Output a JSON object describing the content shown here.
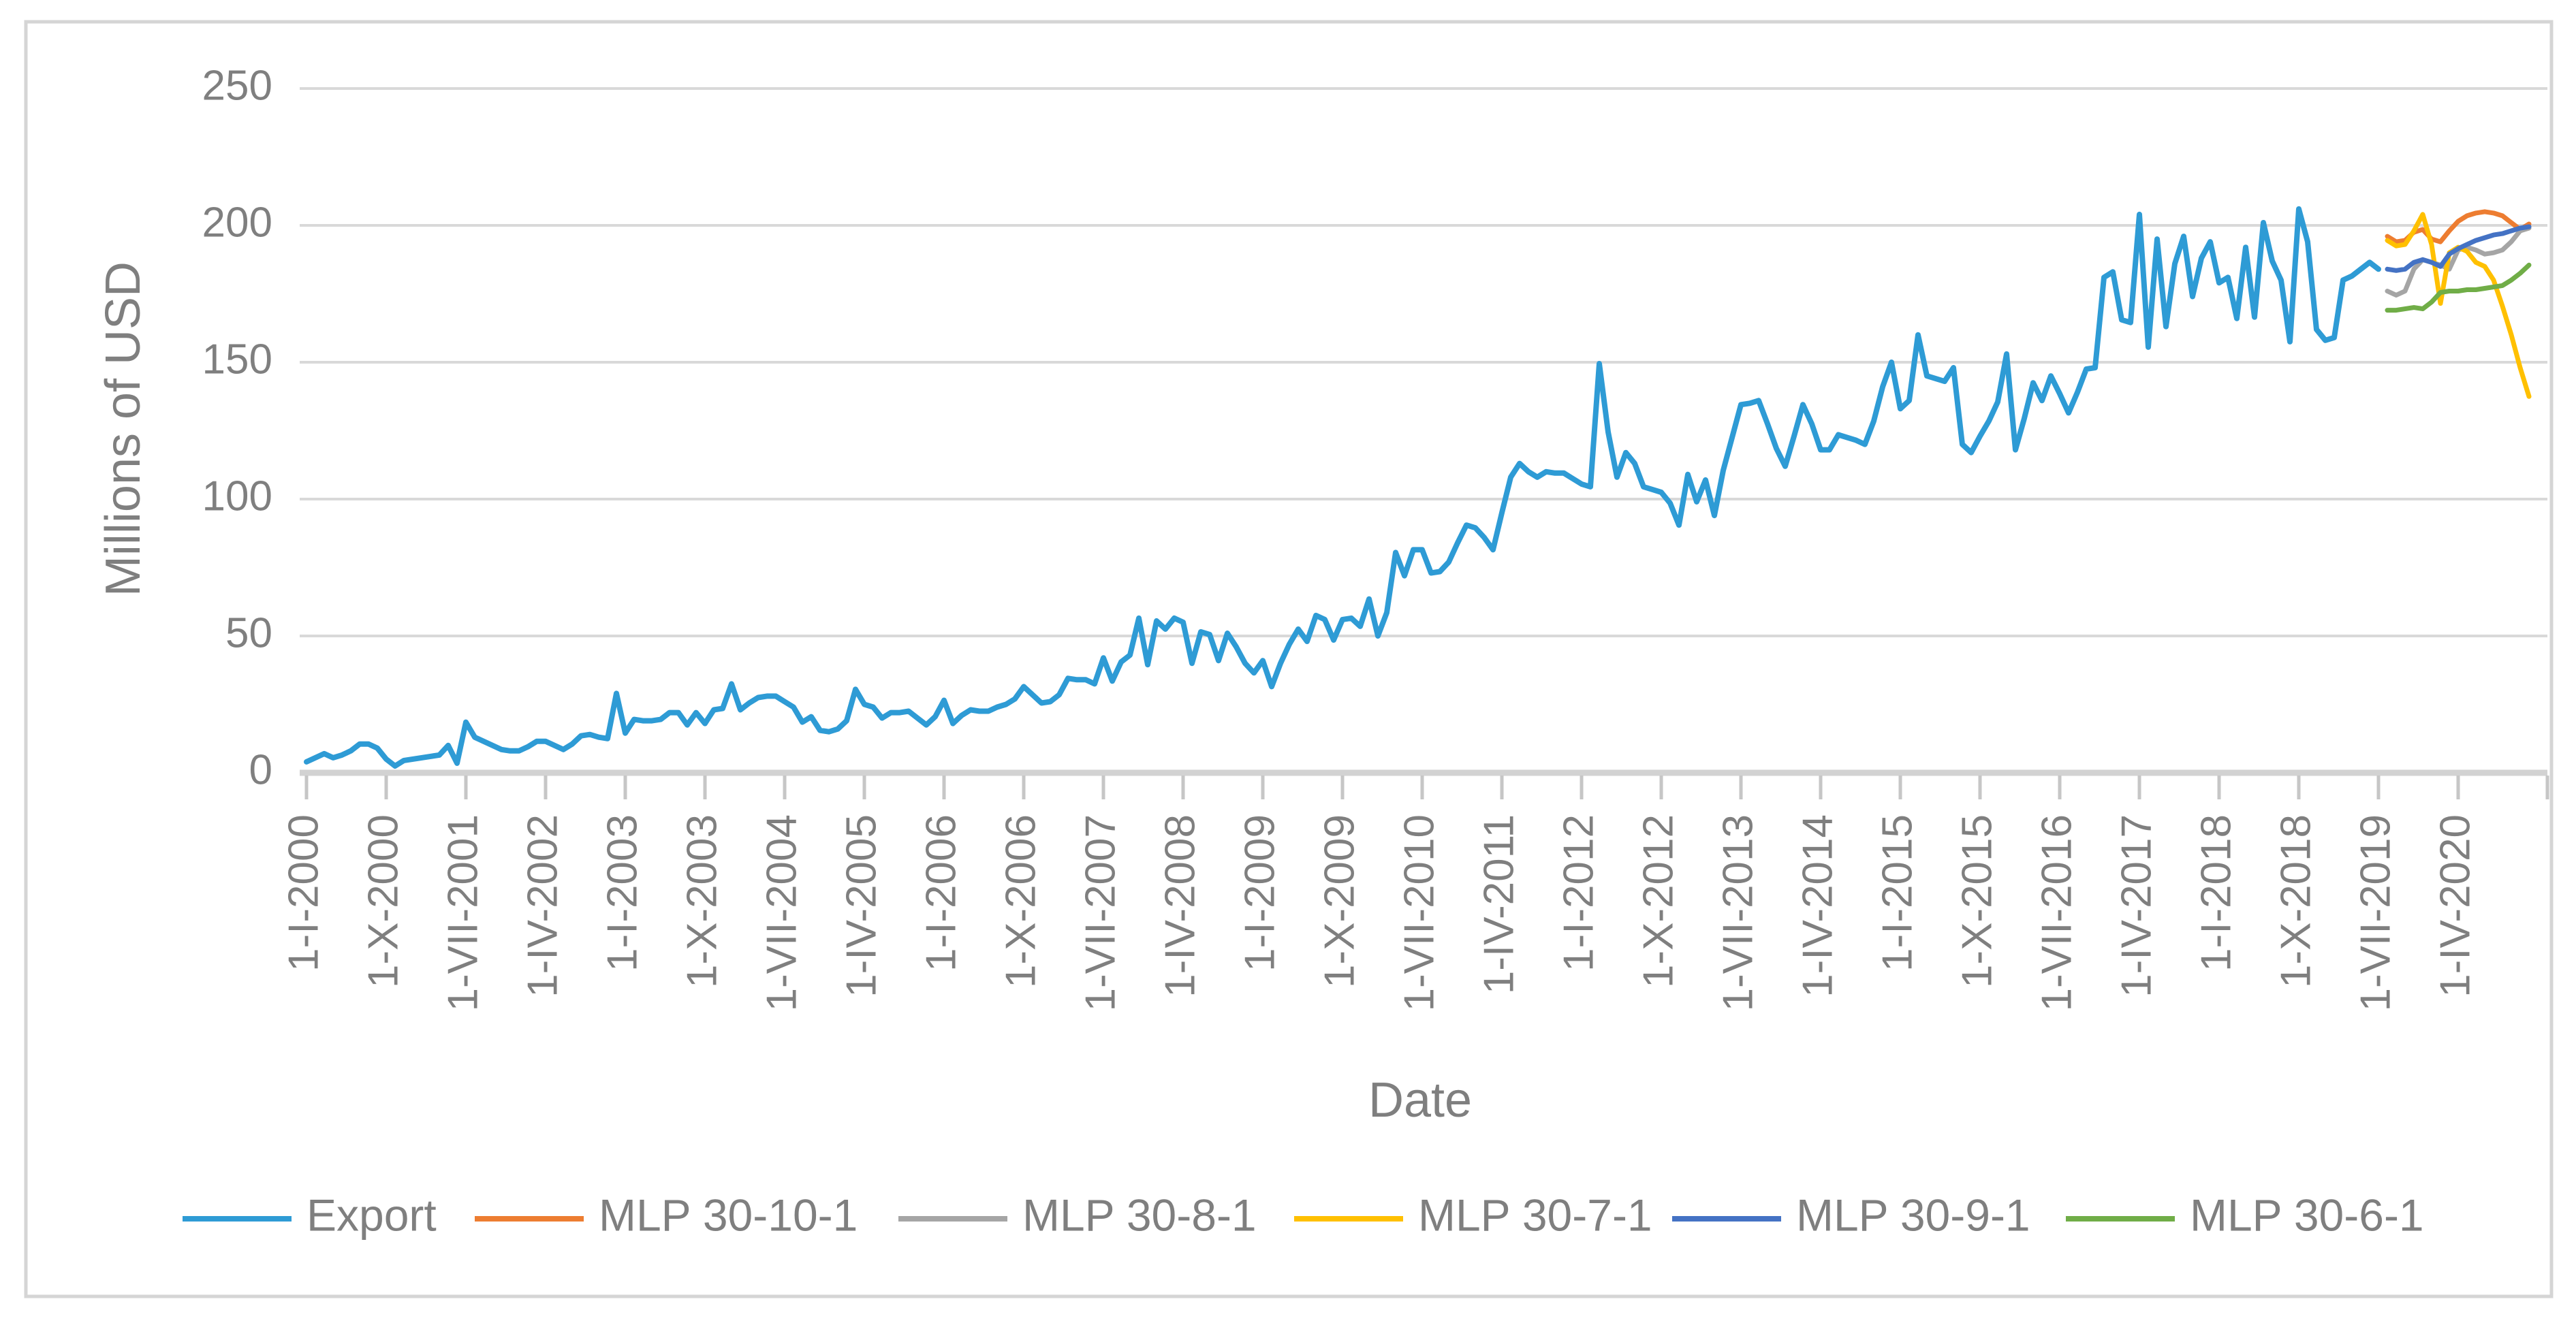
{
  "chart_data": {
    "type": "line",
    "title": "",
    "ylabel": "Millions of USD",
    "xlabel": "Date",
    "ylim": [
      0,
      250
    ],
    "yticks": [
      0,
      50,
      100,
      150,
      200,
      250
    ],
    "grid": "horizontal",
    "legend_position": "bottom",
    "x_tick_labels": [
      "1-I-2000",
      "1-X-2000",
      "1-VII-2001",
      "1-IV-2002",
      "1-I-2003",
      "1-X-2003",
      "1-VII-2004",
      "1-IV-2005",
      "1-I-2006",
      "1-X-2006",
      "1-VII-2007",
      "1-IV-2008",
      "1-I-2009",
      "1-X-2009",
      "1-VII-2010",
      "1-IV-2011",
      "1-I-2012",
      "1-X-2012",
      "1-VII-2013",
      "1-IV-2014",
      "1-I-2015",
      "1-X-2015",
      "1-VII-2016",
      "1-IV-2017",
      "1-I-2018",
      "1-X-2018",
      "1-VII-2019",
      "1-IV-2020"
    ],
    "x_description": "monthly data Jan-2000 to Dec-2020, axis tick every 9 months",
    "colors": {
      "export": "#2E9BD5",
      "mlp_30_10_1": "#ED7D31",
      "mlp_30_8_1": "#A5A5A5",
      "mlp_30_7_1": "#FFC000",
      "mlp_30_9_1": "#4472C4",
      "mlp_30_6_1": "#70AD47",
      "gridline": "#D9D9D9",
      "axis_line": "#D2D2D2",
      "tick_mark": "#C6C6C6",
      "label_text": "#7F7F7F",
      "border": "#D5D5D5"
    },
    "series": [
      {
        "name": "Export",
        "color": "#2E9BD5",
        "start_month_index": 0,
        "line_width": 8,
        "values": [
          4,
          5.5,
          7,
          5.5,
          6.5,
          8,
          10.5,
          10.5,
          9,
          5,
          2.5,
          4.5,
          5,
          5.5,
          6,
          6.5,
          10,
          3.5,
          18.5,
          13,
          11.5,
          10,
          8.5,
          8,
          8,
          9.5,
          11.5,
          11.5,
          10,
          8.5,
          10.5,
          13.5,
          14,
          13,
          12.5,
          29,
          14.5,
          19.5,
          19,
          19,
          19.5,
          22,
          22,
          17.5,
          22,
          18,
          23,
          23.5,
          32.5,
          23,
          25.5,
          27.5,
          28,
          28,
          26,
          24,
          18.5,
          20.5,
          15.5,
          15,
          16,
          19,
          30.5,
          25,
          24,
          20,
          22,
          22,
          22.5,
          20,
          17.5,
          20.5,
          26.5,
          18,
          21,
          23,
          22.5,
          22.5,
          24,
          25,
          27,
          31.5,
          28.5,
          25.5,
          26,
          28.5,
          34.5,
          34,
          34,
          32.5,
          42,
          33.5,
          40.5,
          43,
          56.5,
          39.5,
          55.5,
          52.5,
          56.5,
          55,
          40,
          51.5,
          50.5,
          41,
          51,
          46,
          40,
          36.5,
          41,
          31.5,
          40,
          47,
          52.5,
          48,
          57.5,
          56,
          48.5,
          56,
          56.5,
          53.5,
          63.5,
          50,
          58.5,
          80.5,
          72,
          81.5,
          81.5,
          73,
          73.5,
          77,
          84,
          90.5,
          89.5,
          86,
          81.5,
          95,
          108,
          113,
          110,
          108,
          110,
          109.5,
          109.5,
          107.5,
          105.5,
          104.5,
          149.5,
          124.5,
          108,
          117,
          113,
          104.5,
          103.5,
          102.5,
          98.5,
          90.5,
          109,
          99,
          107,
          94,
          110.5,
          122.5,
          134.5,
          135,
          136,
          127.5,
          118.5,
          112,
          123,
          134.5,
          127.5,
          118,
          118,
          123.5,
          122.5,
          121.5,
          120,
          128.5,
          141,
          150,
          133,
          136,
          160,
          145,
          144,
          143,
          148,
          120,
          117,
          123,
          128.5,
          135.5,
          153,
          118,
          129.5,
          142.5,
          136,
          145,
          138.5,
          131.5,
          139,
          147.5,
          148,
          181,
          183,
          165.5,
          164.5,
          204,
          155.5,
          195,
          163,
          186,
          196,
          174,
          188,
          194,
          179,
          181,
          166,
          192,
          166.5,
          201,
          187,
          180,
          157.5,
          206,
          194,
          162,
          158,
          159,
          180,
          181.5,
          184,
          186.5,
          184
        ]
      },
      {
        "name": "MLP 30-10-1",
        "color": "#ED7D31",
        "start_month_index": 235,
        "line_width": 7,
        "values": [
          196,
          194,
          194.5,
          197.5,
          198.5,
          195,
          194,
          198,
          201.5,
          203.5,
          204.5,
          205,
          204.5,
          203.5,
          201,
          198.5,
          200.5
        ]
      },
      {
        "name": "MLP 30-8-1",
        "color": "#A5A5A5",
        "start_month_index": 235,
        "line_width": 7,
        "values": [
          176,
          174.5,
          176,
          184,
          187.5,
          186.5,
          185.5,
          184,
          191,
          192,
          191,
          189.5,
          190,
          191,
          194,
          198,
          199
        ]
      },
      {
        "name": "MLP 30-7-1",
        "color": "#FFC000",
        "start_month_index": 235,
        "line_width": 7,
        "values": [
          194.5,
          192.5,
          193,
          198,
          204,
          193,
          171.5,
          190,
          192,
          190.5,
          186.5,
          185,
          180,
          170.5,
          160,
          148,
          137.5
        ]
      },
      {
        "name": "MLP 30-9-1",
        "color": "#4472C4",
        "start_month_index": 235,
        "line_width": 7,
        "values": [
          184,
          183.5,
          184,
          186.5,
          187.5,
          186.5,
          185,
          189.5,
          191.5,
          193,
          194.5,
          195.5,
          196.5,
          197,
          198,
          199,
          199.5
        ]
      },
      {
        "name": "MLP 30-6-1",
        "color": "#70AD47",
        "start_month_index": 235,
        "line_width": 7,
        "values": [
          169,
          169,
          169.5,
          170,
          169.5,
          172,
          175.5,
          176,
          176,
          176.5,
          176.5,
          177,
          177.5,
          178,
          180,
          182.5,
          185.5
        ]
      }
    ],
    "legend": [
      "Export",
      "MLP 30-10-1",
      "MLP 30-8-1",
      "MLP 30-7-1",
      "MLP 30-9-1",
      "MLP 30-6-1"
    ]
  }
}
